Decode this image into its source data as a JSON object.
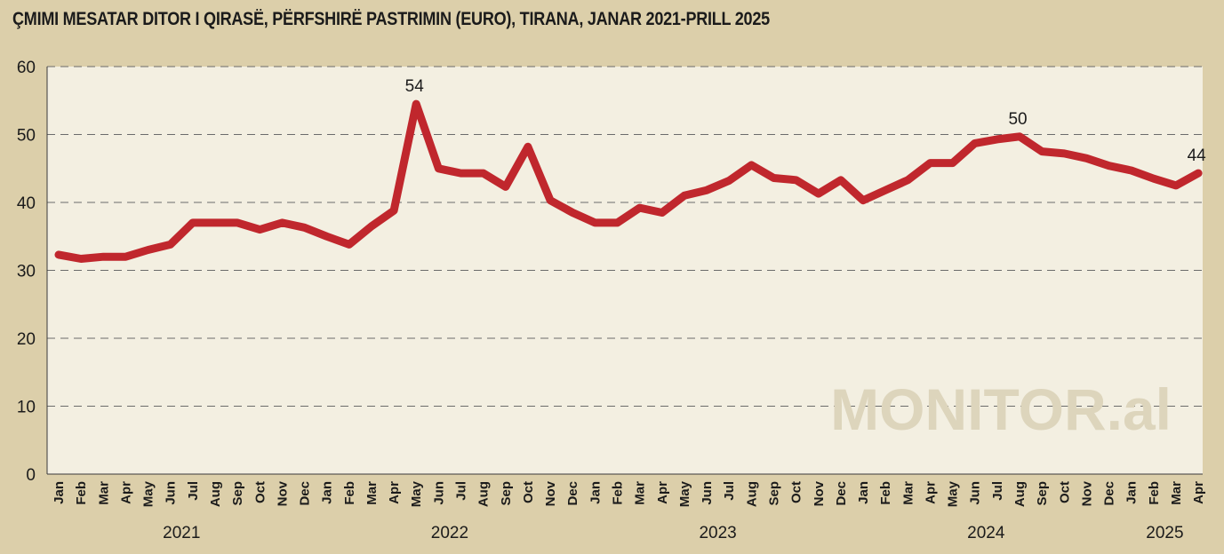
{
  "title": "ÇMIMI MESATAR DITOR I QIRASË, PËRFSHIRË PASTRIMIN (EURO), TIRANA, JANAR 2021-PRILL 2025",
  "watermark": "MONITOR.al",
  "chart_data": {
    "type": "line",
    "title": "ÇMIMI MESATAR DITOR I QIRASË, PËRFSHIRË PASTRIMIN (EURO), TIRANA, JANAR 2021-PRILL 2025",
    "xlabel": "",
    "ylabel": "",
    "ylim": [
      0,
      60
    ],
    "yticks": [
      "0",
      "10",
      "20",
      "30",
      "40",
      "50",
      "60"
    ],
    "grid": "horizontal dashed",
    "legend": "none",
    "line_color": "#c0272d",
    "categories": [
      "Jan",
      "Feb",
      "Mar",
      "Apr",
      "May",
      "Jun",
      "Jul",
      "Aug",
      "Sep",
      "Oct",
      "Nov",
      "Dec",
      "Jan",
      "Feb",
      "Mar",
      "Apr",
      "May",
      "Jun",
      "Jul",
      "Aug",
      "Sep",
      "Oct",
      "Nov",
      "Dec",
      "Jan",
      "Feb",
      "Mar",
      "Apr",
      "May",
      "Jun",
      "Jul",
      "Aug",
      "Sep",
      "Oct",
      "Nov",
      "Dec",
      "Jan",
      "Feb",
      "Mar",
      "Apr",
      "May",
      "Jun",
      "Jul",
      "Aug",
      "Sep",
      "Oct",
      "Nov",
      "Dec",
      "Jan",
      "Feb",
      "Mar",
      "Apr"
    ],
    "years": [
      {
        "label": "2021",
        "start": 0,
        "end": 11
      },
      {
        "label": "2022",
        "start": 12,
        "end": 23
      },
      {
        "label": "2023",
        "start": 24,
        "end": 35
      },
      {
        "label": "2024",
        "start": 36,
        "end": 47
      },
      {
        "label": "2025",
        "start": 48,
        "end": 51
      }
    ],
    "series": [
      {
        "values": [
          32.3,
          31.7,
          32.0,
          32.0,
          33.0,
          33.8,
          37.0,
          37.0,
          37.0,
          36.0,
          37.0,
          36.3,
          35.0,
          33.8,
          36.5,
          38.8,
          54.5,
          45.0,
          44.3,
          44.3,
          42.3,
          48.2,
          40.3,
          38.5,
          37.0,
          37.0,
          39.2,
          38.5,
          41.0,
          41.8,
          43.2,
          45.5,
          43.6,
          43.3,
          41.3,
          43.3,
          40.3,
          41.8,
          43.3,
          45.8,
          45.8,
          48.7,
          49.3,
          49.7,
          47.5,
          47.2,
          46.5,
          45.4,
          44.7,
          43.5,
          42.5,
          44.3
        ]
      }
    ],
    "annotations": [
      {
        "index": 16,
        "text": "54"
      },
      {
        "index": 43,
        "text": "50"
      },
      {
        "index": 51,
        "text": "44"
      }
    ]
  }
}
